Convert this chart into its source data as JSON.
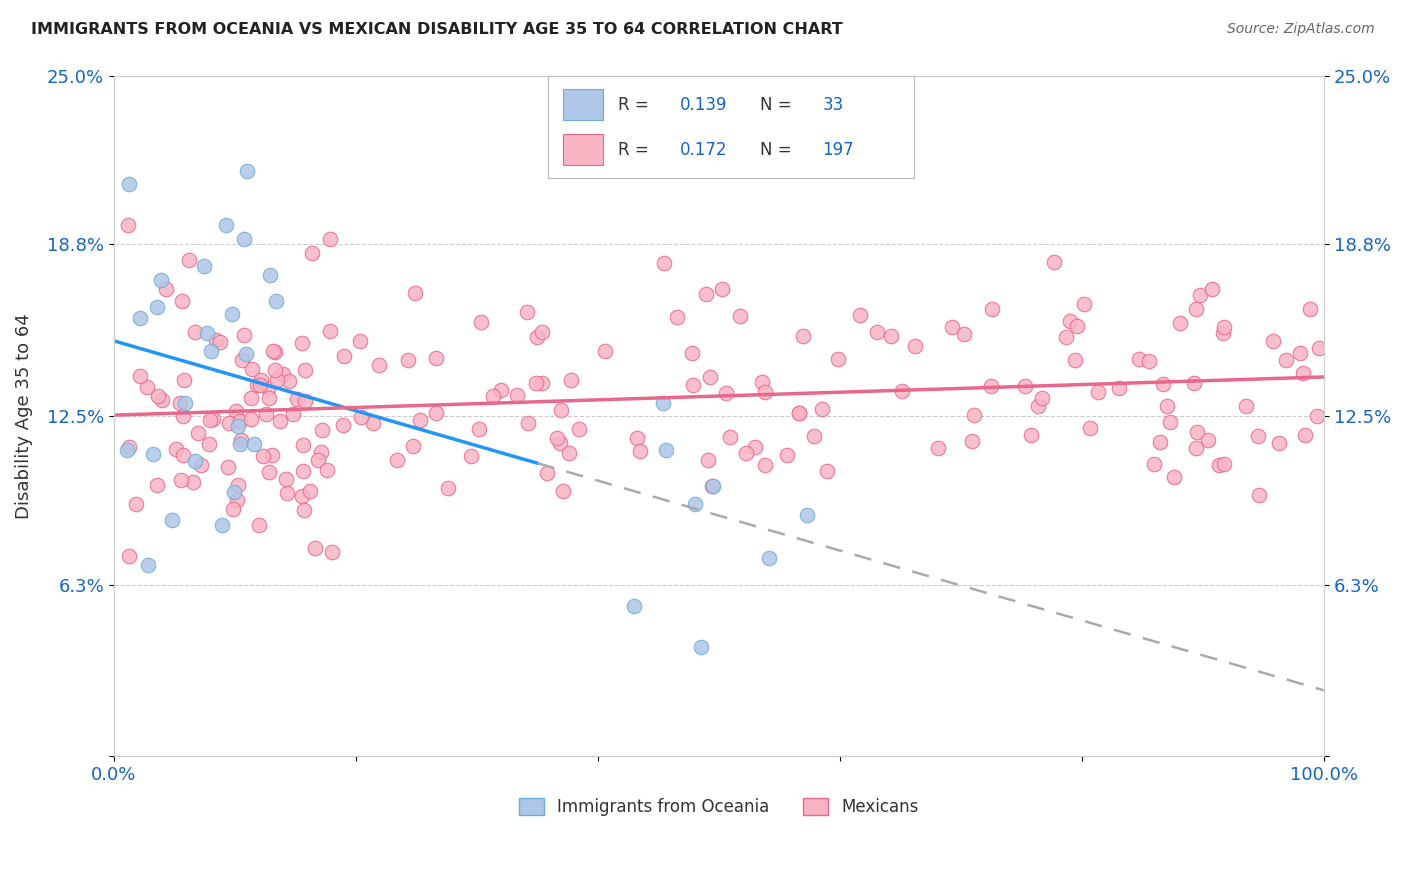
{
  "title": "IMMIGRANTS FROM OCEANIA VS MEXICAN DISABILITY AGE 35 TO 64 CORRELATION CHART",
  "source": "Source: ZipAtlas.com",
  "ylabel": "Disability Age 35 to 64",
  "x_min": 0.0,
  "x_max": 1.0,
  "y_min": 0.0,
  "y_max": 0.25,
  "background_color": "#ffffff",
  "grid_color": "#cccccc",
  "oceania_color": "#aec6e8",
  "oceania_edge_color": "#6baed6",
  "mexican_color": "#f9b4c4",
  "mexican_edge_color": "#e8678a",
  "trendline_oceania_color": "#2196F3",
  "trendline_mexican_color": "#e8678a",
  "legend_blue_color": "#1565C0",
  "legend_R_oceania": "0.139",
  "legend_N_oceania": "33",
  "legend_R_mexican": "0.172",
  "legend_N_mexican": "197"
}
